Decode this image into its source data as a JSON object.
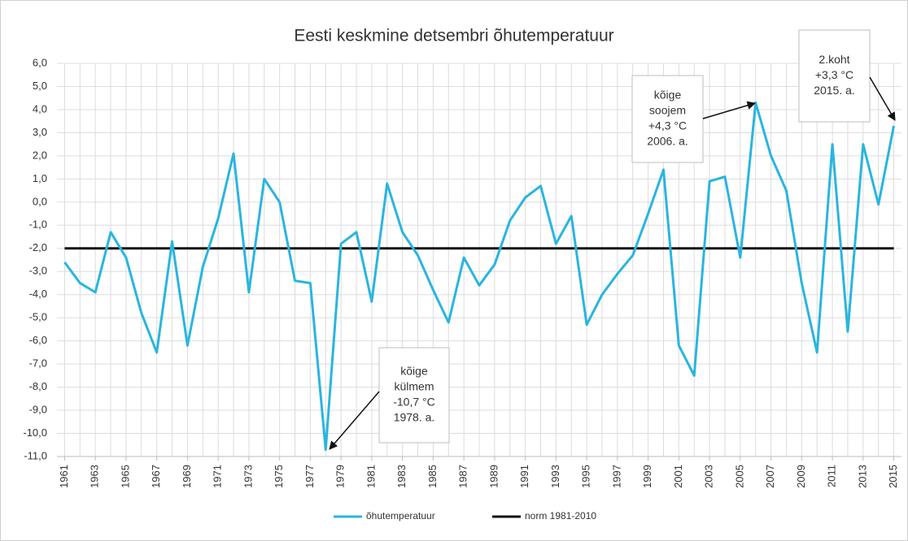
{
  "chart_data": {
    "type": "line",
    "title": "Eesti keskmine detsembri õhutemperatuur",
    "x": [
      1961,
      1962,
      1963,
      1964,
      1965,
      1966,
      1967,
      1968,
      1969,
      1970,
      1971,
      1972,
      1973,
      1974,
      1975,
      1976,
      1977,
      1978,
      1979,
      1980,
      1981,
      1982,
      1983,
      1984,
      1985,
      1986,
      1987,
      1988,
      1989,
      1990,
      1991,
      1992,
      1993,
      1994,
      1995,
      1996,
      1997,
      1998,
      1999,
      2000,
      2001,
      2002,
      2003,
      2004,
      2005,
      2006,
      2007,
      2008,
      2009,
      2010,
      2011,
      2012,
      2013,
      2014,
      2015
    ],
    "series": [
      {
        "name": "õhutemperatuur",
        "color": "#29b5e0",
        "values": [
          -2.6,
          -3.5,
          -3.9,
          -1.3,
          -2.4,
          -4.8,
          -6.5,
          -1.7,
          -6.2,
          -2.8,
          -0.7,
          2.1,
          -3.9,
          1.0,
          0.0,
          -3.4,
          -3.5,
          -10.7,
          -1.8,
          -1.3,
          -4.3,
          0.8,
          -1.3,
          -2.3,
          -3.8,
          -5.2,
          -2.4,
          -3.6,
          -2.7,
          -0.8,
          0.2,
          0.7,
          -1.8,
          -0.6,
          -5.3,
          -4.0,
          -3.1,
          -2.3,
          -0.5,
          1.4,
          -6.2,
          -7.5,
          0.9,
          1.1,
          -2.4,
          4.3,
          2.0,
          0.5,
          -3.5,
          -6.5,
          2.5,
          -5.6,
          2.5,
          -0.1,
          3.3
        ]
      },
      {
        "name": "norm 1981-2010",
        "color": "#111111",
        "values": [
          -2.0,
          -2.0,
          -2.0,
          -2.0,
          -2.0,
          -2.0,
          -2.0,
          -2.0,
          -2.0,
          -2.0,
          -2.0,
          -2.0,
          -2.0,
          -2.0,
          -2.0,
          -2.0,
          -2.0,
          -2.0,
          -2.0,
          -2.0,
          -2.0,
          -2.0,
          -2.0,
          -2.0,
          -2.0,
          -2.0,
          -2.0,
          -2.0,
          -2.0,
          -2.0,
          -2.0,
          -2.0,
          -2.0,
          -2.0,
          -2.0,
          -2.0,
          -2.0,
          -2.0,
          -2.0,
          -2.0,
          -2.0,
          -2.0,
          -2.0,
          -2.0,
          -2.0,
          -2.0,
          -2.0,
          -2.0,
          -2.0,
          -2.0,
          -2.0,
          -2.0,
          -2.0,
          -2.0,
          -2.0
        ]
      }
    ],
    "xlim": [
      1960.5,
      2015.5
    ],
    "xticks": [
      1961,
      1963,
      1965,
      1967,
      1969,
      1971,
      1973,
      1975,
      1977,
      1979,
      1981,
      1983,
      1985,
      1987,
      1989,
      1991,
      1993,
      1995,
      1997,
      1999,
      2001,
      2003,
      2005,
      2007,
      2009,
      2011,
      2013,
      2015
    ],
    "ylim": [
      -11,
      6
    ],
    "yticks": [
      {
        "value": 6,
        "label": "6,0"
      },
      {
        "value": 5,
        "label": "5,0"
      },
      {
        "value": 4,
        "label": "4,0"
      },
      {
        "value": 3,
        "label": "3,0"
      },
      {
        "value": 2,
        "label": "2,0"
      },
      {
        "value": 1,
        "label": "1,0"
      },
      {
        "value": 0,
        "label": "0,0"
      },
      {
        "value": -1,
        "label": "-1,0"
      },
      {
        "value": -2,
        "label": "-2,0"
      },
      {
        "value": -3,
        "label": "-3,0"
      },
      {
        "value": -4,
        "label": "-4,0"
      },
      {
        "value": -5,
        "label": "-5,0"
      },
      {
        "value": -6,
        "label": "-6,0"
      },
      {
        "value": -7,
        "label": "-7,0"
      },
      {
        "value": -8,
        "label": "-8,0"
      },
      {
        "value": -9,
        "label": "-9,0"
      },
      {
        "value": -10,
        "label": "-10,0"
      },
      {
        "value": -11,
        "label": "-11,0"
      }
    ],
    "grid": true,
    "legend": "bottom",
    "annotations": [
      {
        "lines": [
          "kõige",
          "külmem",
          "-10,7 °C",
          "1978. a."
        ]
      },
      {
        "lines": [
          "kõige",
          "soojem",
          "+4,3 °C",
          "2006. a."
        ]
      },
      {
        "lines": [
          "2.koht",
          "+3,3 °C",
          "2015. a."
        ]
      }
    ]
  }
}
